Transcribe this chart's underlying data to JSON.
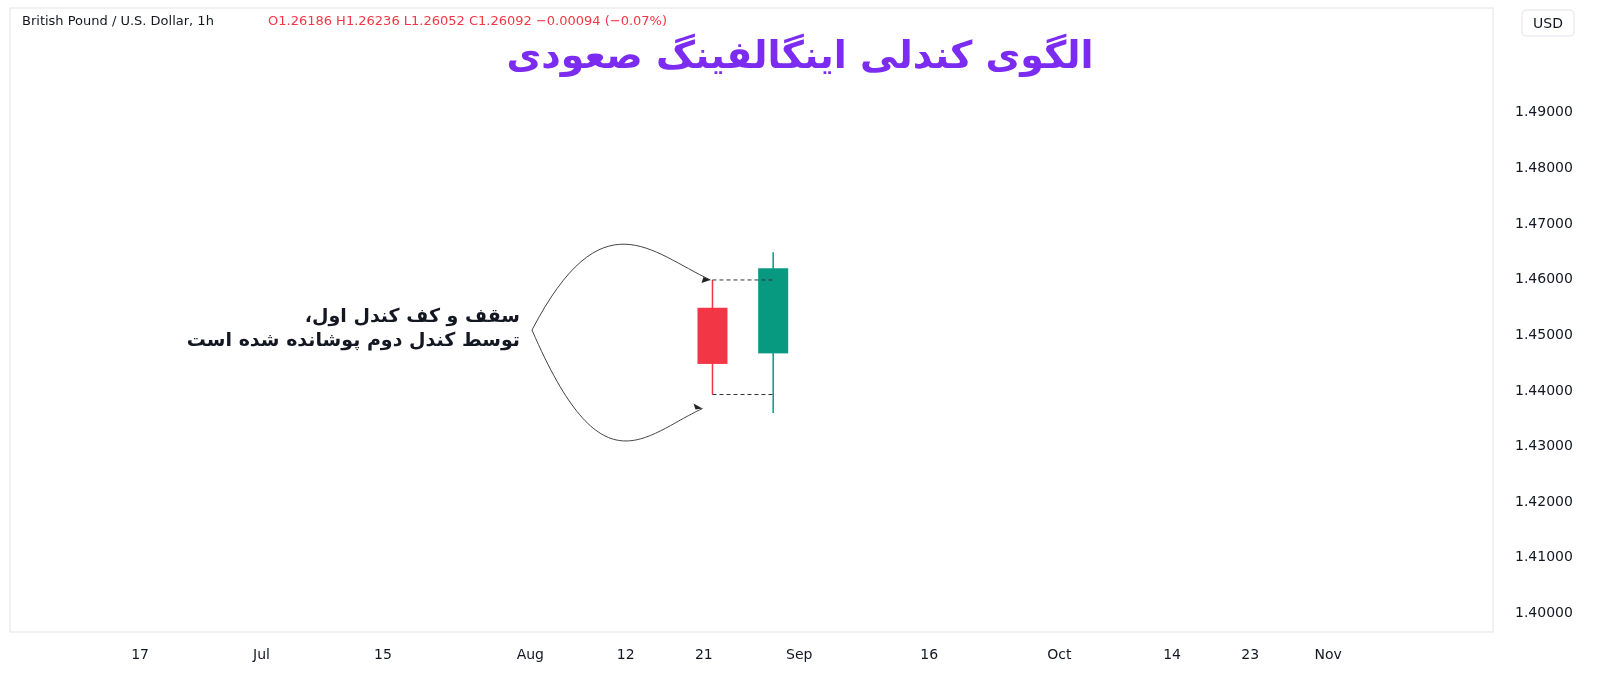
{
  "chart_data": {
    "type": "candlestick",
    "title": "الگوی کندلی اینگالفینگ صعودی",
    "annotations": [
      "British Pound / U.S. Dollar, 1h",
      "O1.26186 H1.26236 L1.26052 C1.26092 −0.00094 (−0.07%)",
      "USD",
      {
        "text": "سقف و کف کندل اول،\nتوسط کندل دوم پوشانده شده است",
        "x": "--08-22",
        "y": 1.4597
      }
    ],
    "x": [
      "--08-22",
      "--08-29"
    ],
    "ohlc": [
      [
        1.4547,
        1.4597,
        1.4391,
        1.4446
      ],
      [
        1.4465,
        1.4647,
        1.4358,
        1.4618
      ]
    ],
    "colors": [
      "#f23645",
      "#089981"
    ],
    "xlim": [
      "--06-02",
      "--11-20"
    ],
    "xticks": [
      {
        "value": "--06-17",
        "label": "17"
      },
      {
        "value": "--07-01",
        "label": "Jul"
      },
      {
        "value": "--07-15",
        "label": "15"
      },
      {
        "value": "--08-01",
        "label": "Aug"
      },
      {
        "value": "--08-12",
        "label": "12"
      },
      {
        "value": "--08-21",
        "label": "21"
      },
      {
        "value": "--09-01",
        "label": "Sep"
      },
      {
        "value": "--09-16",
        "label": "16"
      },
      {
        "value": "--10-01",
        "label": "Oct"
      },
      {
        "value": "--10-14",
        "label": "14"
      },
      {
        "value": "--10-23",
        "label": "23"
      },
      {
        "value": "--11-01",
        "label": "Nov"
      }
    ],
    "ylim": [
      1.3964,
      1.5086
    ],
    "yticks": [
      {
        "value": 1.4,
        "label": "1.40000"
      },
      {
        "value": 1.41,
        "label": "1.41000"
      },
      {
        "value": 1.42,
        "label": "1.42000"
      },
      {
        "value": 1.43,
        "label": "1.43000"
      },
      {
        "value": 1.44,
        "label": "1.44000"
      },
      {
        "value": 1.45,
        "label": "1.45000"
      },
      {
        "value": 1.46,
        "label": "1.46000"
      },
      {
        "value": 1.47,
        "label": "1.47000"
      },
      {
        "value": 1.48,
        "label": "1.48000"
      },
      {
        "value": 1.49,
        "label": "1.49000"
      }
    ]
  }
}
